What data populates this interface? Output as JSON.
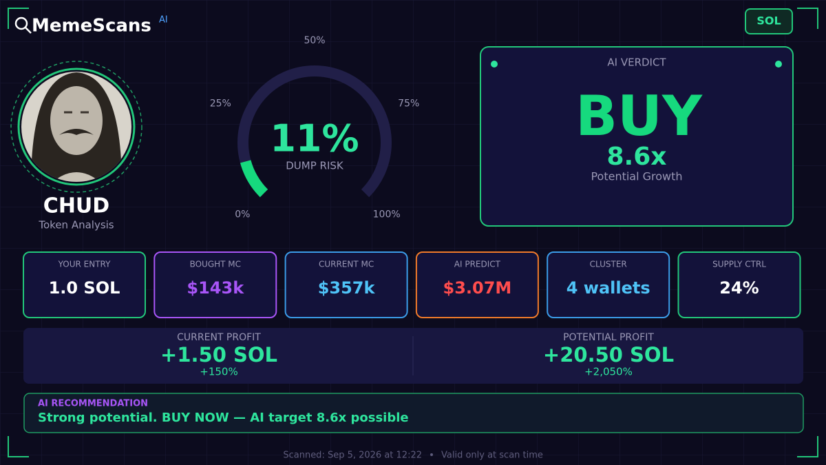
{
  "header": {
    "brand": "MemeScans",
    "brand_badge": "AI",
    "chain": "SOL"
  },
  "token": {
    "name": "CHUD",
    "subtitle": "Token Analysis"
  },
  "gauge": {
    "value": 11,
    "value_label": "11%",
    "caption": "DUMP RISK",
    "range": [
      0,
      100
    ],
    "ticks": [
      {
        "value": 0,
        "label": "0%"
      },
      {
        "value": 25,
        "label": "25%"
      },
      {
        "value": 50,
        "label": "50%"
      },
      {
        "value": 75,
        "label": "75%"
      },
      {
        "value": 100,
        "label": "100%"
      }
    ]
  },
  "verdict": {
    "title": "AI VERDICT",
    "call": "BUY",
    "multiple": "8.6x",
    "caption": "Potential Growth"
  },
  "metrics": [
    {
      "label": "YOUR ENTRY",
      "value": "1.0 SOL"
    },
    {
      "label": "BOUGHT MC",
      "value": "$143k"
    },
    {
      "label": "CURRENT MC",
      "value": "$357k"
    },
    {
      "label": "AI PREDICT",
      "value": "$3.07M"
    },
    {
      "label": "CLUSTER",
      "value": "4 wallets"
    },
    {
      "label": "SUPPLY CTRL",
      "value": "24%"
    }
  ],
  "profit": [
    {
      "label": "CURRENT PROFIT",
      "value": "+1.50 SOL",
      "percent": "+150%"
    },
    {
      "label": "POTENTIAL PROFIT",
      "value": "+20.50 SOL",
      "percent": "+2,050%"
    }
  ],
  "recommendation": {
    "label": "AI RECOMMENDATION",
    "text": "Strong potential. BUY NOW — AI target 8.6x possible"
  },
  "footer": {
    "scanned": "Scanned: Sep 5, 2026 at 12:22",
    "note": "Valid only at scan time"
  }
}
